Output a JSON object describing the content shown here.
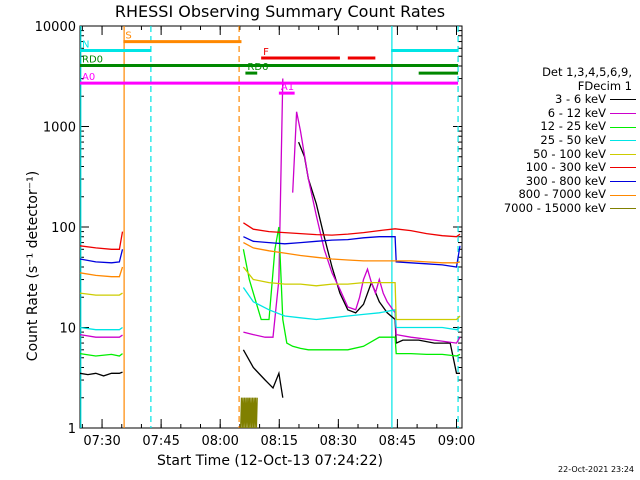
{
  "chart_data": {
    "type": "line",
    "title": "RHESSI Observing Summary Count Rates",
    "xlabel": "Start Time (12-Oct-13 07:24:22)",
    "ylabel": "Count Rate (s⁻¹ detector⁻¹)",
    "yscale": "log",
    "ylim": [
      1,
      10000
    ],
    "xlim_minutes": [
      0,
      97
    ],
    "x_ticks": [
      {
        "label": "07:30",
        "min": 5.6
      },
      {
        "label": "07:45",
        "min": 20.6
      },
      {
        "label": "08:00",
        "min": 35.6
      },
      {
        "label": "08:15",
        "min": 50.6
      },
      {
        "label": "08:30",
        "min": 65.6
      },
      {
        "label": "08:45",
        "min": 80.6
      },
      {
        "label": "09:00",
        "min": 95.6
      }
    ],
    "y_ticks": [
      {
        "label": "1",
        "v": 1
      },
      {
        "label": "10",
        "v": 10
      },
      {
        "label": "100",
        "v": 100
      },
      {
        "label": "1000",
        "v": 1000
      },
      {
        "label": "10000",
        "v": 10000
      }
    ],
    "legend": {
      "header": [
        "Det 1,3,4,5,6,9,",
        "FDecim 1"
      ],
      "placement": "right"
    },
    "series": [
      {
        "name": "3 - 6 keV",
        "color": "#000000",
        "x": [
          0,
          2,
          4,
          6,
          8,
          10,
          10.8,
          11.5,
          12.5,
          40.6,
          41.5,
          44,
          47,
          49,
          50.5,
          51.5,
          53,
          55.5,
          57,
          58,
          60,
          62,
          64,
          66,
          68,
          70,
          72,
          74,
          76,
          78,
          80,
          80.3,
          82,
          86,
          90,
          94,
          95.6,
          96.5
        ],
        "y": [
          3.5,
          3.4,
          3.5,
          3.3,
          3.5,
          3.5,
          3.6,
          null,
          null,
          null,
          6,
          4,
          3,
          2.5,
          3.5,
          2,
          null,
          700,
          500,
          300,
          170,
          80,
          40,
          22,
          15,
          14,
          17,
          28,
          18,
          14,
          12,
          7,
          7.5,
          7.5,
          7,
          7,
          3.5,
          3.5
        ]
      },
      {
        "name": "6 - 12 keV",
        "color": "#cc00cc",
        "x": [
          0,
          4,
          8,
          10,
          10.8,
          11.5,
          12.5,
          40.6,
          41.5,
          44,
          47,
          49,
          50.5,
          51.5,
          53,
          54,
          55,
          56,
          58,
          60,
          62,
          64,
          66,
          68,
          70,
          71,
          72,
          73,
          74,
          75,
          76,
          77,
          78,
          80,
          80.3,
          84,
          90,
          95.6,
          96.5
        ],
        "y": [
          8.5,
          8,
          8,
          8,
          8.4,
          null,
          null,
          null,
          9,
          8.5,
          8,
          8,
          30,
          3000,
          null,
          220,
          1400,
          900,
          300,
          130,
          60,
          35,
          24,
          16,
          15,
          20,
          30,
          38,
          28,
          22,
          30,
          22,
          18,
          14,
          8.5,
          8,
          7.5,
          7,
          8
        ]
      },
      {
        "name": "12 - 25 keV",
        "color": "#00ee00",
        "x": [
          0,
          4,
          8,
          10,
          10.8,
          11.5,
          12.5,
          40.6,
          41.5,
          43,
          46,
          48,
          49.5,
          50.5,
          51.5,
          52.5,
          54,
          56,
          58,
          60,
          64,
          68,
          72,
          76,
          80,
          80.3,
          84,
          88,
          92,
          95.6,
          96.5
        ],
        "y": [
          5.5,
          5.2,
          5.4,
          5.2,
          5.5,
          null,
          null,
          null,
          60,
          30,
          12,
          12,
          60,
          100,
          12,
          7,
          6.5,
          6.2,
          6,
          6,
          6,
          6,
          6.5,
          8,
          8,
          5.5,
          5.5,
          5.4,
          5.4,
          5.2,
          5.4
        ]
      },
      {
        "name": "25 - 50 keV",
        "color": "#00e5e5",
        "x": [
          0,
          4,
          8,
          10,
          10.8,
          11.5,
          12.5,
          40.6,
          41.5,
          44,
          48,
          52,
          56,
          60,
          64,
          68,
          72,
          76,
          80,
          80.3,
          84,
          88,
          92,
          95.6,
          96.5
        ],
        "y": [
          10,
          9.5,
          9.5,
          9.5,
          10,
          null,
          null,
          null,
          25,
          18,
          15,
          13,
          12.5,
          12,
          12.5,
          13,
          13.5,
          14,
          15,
          10,
          10,
          10,
          10,
          9.5,
          10
        ]
      },
      {
        "name": "50 - 100 keV",
        "color": "#cccc00",
        "x": [
          0,
          4,
          8,
          10,
          10.8,
          11.5,
          12.5,
          40.6,
          41.5,
          44,
          48,
          52,
          56,
          60,
          64,
          68,
          72,
          76,
          80,
          80.3,
          84,
          88,
          92,
          95.6,
          96.5
        ],
        "y": [
          22,
          21,
          21,
          21,
          22,
          null,
          null,
          null,
          40,
          30,
          28,
          27,
          27,
          26,
          27,
          27,
          28,
          28,
          28,
          12,
          12,
          12,
          12,
          12,
          13
        ]
      },
      {
        "name": "100 - 300 keV",
        "color": "#ee0000",
        "x": [
          0,
          4,
          8,
          10,
          10.8,
          11.5,
          12.5,
          40.6,
          41.5,
          44,
          48,
          52,
          56,
          60,
          64,
          68,
          72,
          76,
          80,
          84,
          88,
          92,
          95.6,
          96.5
        ],
        "y": [
          65,
          62,
          60,
          60,
          90,
          null,
          null,
          null,
          110,
          95,
          90,
          88,
          86,
          84,
          83,
          85,
          88,
          92,
          96,
          92,
          86,
          82,
          80,
          85
        ]
      },
      {
        "name": "300 - 800 keV",
        "color": "#0000dd",
        "x": [
          0,
          4,
          8,
          10,
          10.8,
          11.5,
          12.5,
          40.6,
          41.5,
          44,
          48,
          52,
          56,
          60,
          64,
          68,
          72,
          76,
          80,
          80.3,
          84,
          88,
          92,
          95.6,
          96.5
        ],
        "y": [
          48,
          45,
          44,
          45,
          60,
          null,
          null,
          null,
          80,
          72,
          70,
          68,
          70,
          72,
          74,
          75,
          78,
          80,
          80,
          45,
          44,
          43,
          42,
          40,
          65
        ]
      },
      {
        "name": "800 - 7000 keV",
        "color": "#ff8800",
        "x": [
          0,
          4,
          8,
          10,
          10.8,
          11.5,
          12.5,
          40.6,
          41.5,
          44,
          48,
          52,
          56,
          60,
          64,
          68,
          72,
          76,
          80,
          84,
          88,
          92,
          95.6,
          96.5
        ],
        "y": [
          35,
          33,
          32,
          32,
          40,
          null,
          null,
          null,
          70,
          62,
          58,
          55,
          52,
          50,
          48,
          47,
          46,
          46,
          46,
          46,
          45,
          44,
          44,
          45
        ]
      },
      {
        "name": "7000 - 15000 keV",
        "color": "#808000",
        "x": [
          40.8,
          41,
          41.2,
          41.4,
          41.6,
          41.8,
          42,
          42.2,
          42.4,
          42.6,
          42.8,
          43,
          43.2,
          43.4,
          43.6,
          43.8,
          44,
          44.2,
          44.4,
          44.6,
          44.8,
          45
        ],
        "y": [
          1,
          2,
          1,
          2,
          1,
          2,
          1,
          2,
          1,
          2,
          1,
          2,
          1,
          2,
          1,
          2,
          1,
          2,
          1,
          2,
          1,
          2
        ]
      }
    ],
    "markers": [
      {
        "label": "S",
        "color": "#ff8800",
        "level": 7000,
        "segments": [
          [
            11,
            41
          ]
        ]
      },
      {
        "label": "N",
        "color": "#00e5e5",
        "level": 5700,
        "segments": [
          [
            0,
            18
          ],
          [
            79,
            96
          ]
        ]
      },
      {
        "label": "F",
        "color": "#ee0000",
        "level": 4800,
        "segments": [
          [
            46,
            66
          ],
          [
            68,
            72
          ],
          [
            68.5,
            75
          ]
        ]
      },
      {
        "label": "RD0",
        "color": "#008800",
        "level": 4050,
        "segments": [
          [
            0,
            96
          ]
        ]
      },
      {
        "label": "RD6",
        "color": "#008800",
        "level": 3400,
        "segments": [
          [
            42,
            45
          ],
          [
            86,
            96
          ]
        ]
      },
      {
        "label": "A0",
        "color": "#ff00ff",
        "level": 2700,
        "segments": [
          [
            0,
            96
          ]
        ]
      },
      {
        "label": "A1",
        "color": "#ff00ff",
        "level": 2150,
        "segments": [
          [
            50.5,
            54.5
          ]
        ]
      }
    ],
    "vlines": [
      {
        "x": 11.2,
        "color": "#ff8800",
        "style": "solid"
      },
      {
        "x": 18.0,
        "color": "#00e5e5",
        "style": "dashed"
      },
      {
        "x": 40.4,
        "color": "#ff8800",
        "style": "dashed"
      },
      {
        "x": 79.2,
        "color": "#00e5e5",
        "style": "solid"
      },
      {
        "x": 96.0,
        "color": "#00e5e5",
        "style": "dashed"
      },
      {
        "x": 0.2,
        "color": "#00e5e5",
        "style": "solid"
      }
    ]
  },
  "footer": {
    "timestamp": "22-Oct-2021 23:24"
  }
}
